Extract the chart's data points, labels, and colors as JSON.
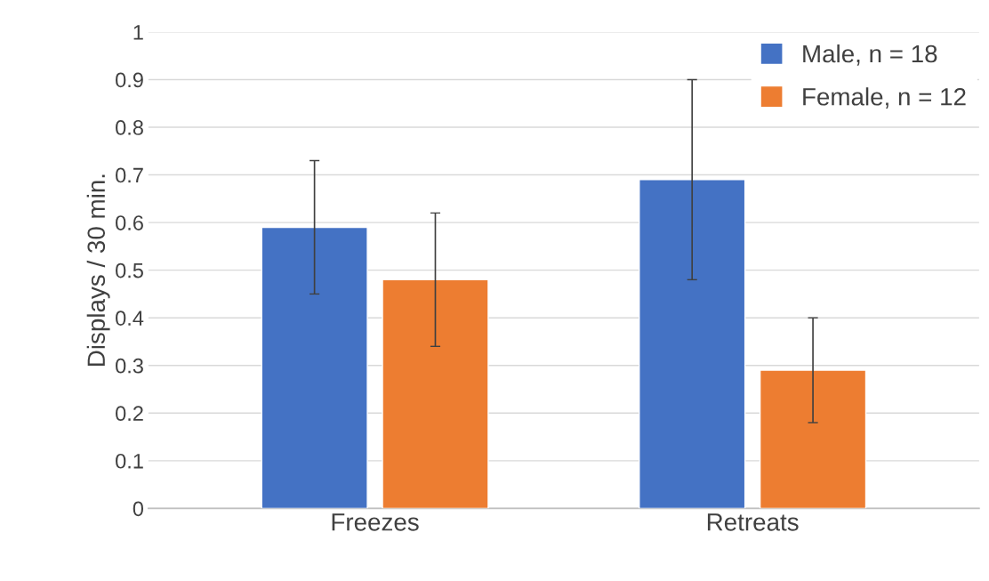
{
  "chart_data": {
    "type": "bar",
    "ylabel": "Displays / 30 min.",
    "categories": [
      "Freezes",
      "Retreats"
    ],
    "series": [
      {
        "name": "Male, n = 18",
        "color": "#4472c4",
        "values": [
          0.59,
          0.69
        ],
        "errors": [
          0.14,
          0.21
        ]
      },
      {
        "name": "Female, n = 12",
        "color": "#ed7d31",
        "values": [
          0.48,
          0.29
        ],
        "errors": [
          0.14,
          0.11
        ]
      }
    ],
    "ylim": [
      0,
      1
    ],
    "yticks": [
      0,
      0.1,
      0.2,
      0.3,
      0.4,
      0.5,
      0.6,
      0.7,
      0.8,
      0.9,
      1
    ],
    "grid": "y",
    "legend": "top right"
  }
}
